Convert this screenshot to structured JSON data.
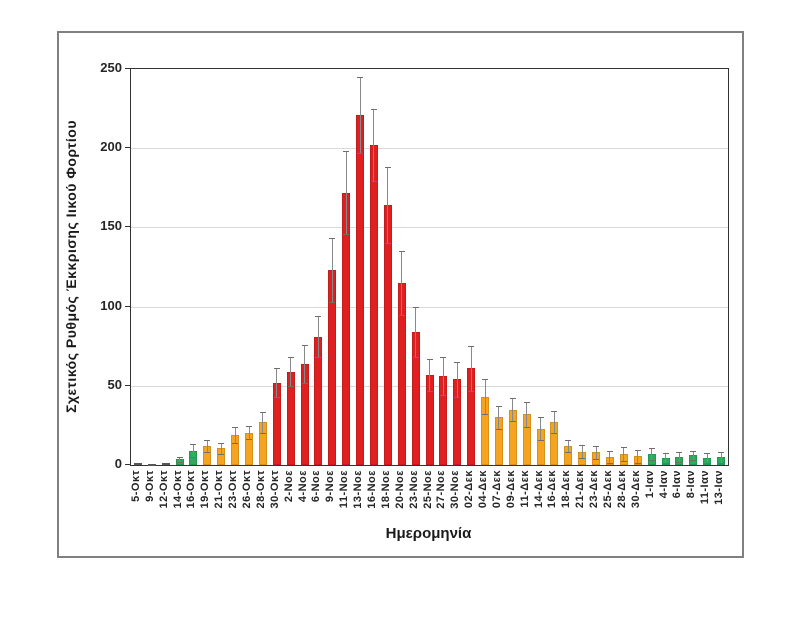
{
  "figure": {
    "background": "#ffffff",
    "frame_border_color": "#808080"
  },
  "chart_data": {
    "type": "bar",
    "title": "",
    "xlabel": "Ημερομηνία",
    "ylabel": "Σχετικός Ρυθμός Έκκρισης Ιικού Φορτίου",
    "ylim": [
      0,
      250
    ],
    "yticks": [
      0,
      50,
      100,
      150,
      200,
      250
    ],
    "grid": true,
    "legend": false,
    "error_bars": "symmetric",
    "categories": [
      "5-Οκτ",
      "9-Οκτ",
      "12-Οκτ",
      "14-Οκτ",
      "16-Οκτ",
      "19-Οκτ",
      "21-Οκτ",
      "23-Οκτ",
      "26-Οκτ",
      "28-Οκτ",
      "30-Οκτ",
      "2-Νοε",
      "4-Νοε",
      "6-Νοε",
      "9-Νοε",
      "11-Νοε",
      "13-Νοε",
      "16-Νοε",
      "18-Νοε",
      "20-Νοε",
      "23-Νοε",
      "25-Νοε",
      "27-Νοε",
      "30-Νοε",
      "02-Δεκ",
      "04-Δεκ",
      "07-Δεκ",
      "09-Δεκ",
      "11-Δεκ",
      "14-Δεκ",
      "16-Δεκ",
      "18-Δεκ",
      "21-Δεκ",
      "23-Δεκ",
      "25-Δεκ",
      "28-Δεκ",
      "30-Δεκ",
      "1-Ιαν",
      "4-Ιαν",
      "6-Ιαν",
      "8-Ιαν",
      "11-Ιαν",
      "13-Ιαν"
    ],
    "values": [
      1,
      0.5,
      1.5,
      3.5,
      9,
      12,
      10.5,
      19,
      20.5,
      27,
      52,
      59,
      64,
      81,
      123,
      172,
      221,
      202,
      164,
      115,
      84,
      57,
      56,
      54,
      61,
      43,
      30,
      35,
      32,
      23,
      27,
      12,
      8.5,
      8,
      5,
      7,
      5.5,
      7,
      4.5,
      5,
      6,
      4.5,
      5
    ],
    "error_plus": [
      0,
      0,
      0,
      1.5,
      4,
      4,
      3.5,
      5,
      4,
      6.5,
      9,
      9,
      12,
      13,
      20,
      26,
      24,
      23,
      24,
      20,
      16,
      10,
      12,
      11,
      14,
      11,
      7,
      7,
      8,
      7,
      7,
      4,
      4,
      4,
      4,
      4.5,
      4,
      4,
      3,
      3,
      3,
      3,
      3.5
    ],
    "bar_colors": [
      "gray",
      "gray",
      "gray",
      "green",
      "green",
      "orange",
      "orange",
      "orange",
      "orange",
      "orange",
      "red",
      "red",
      "red",
      "red",
      "red",
      "red",
      "red",
      "red",
      "red",
      "red",
      "red",
      "red",
      "red",
      "red",
      "red",
      "orange",
      "orange",
      "orange",
      "orange",
      "orange",
      "orange",
      "orange",
      "orange",
      "orange",
      "orange",
      "orange",
      "orange",
      "green",
      "green",
      "green",
      "green",
      "green",
      "green"
    ],
    "colors": {
      "gray": "#636363",
      "green": "#2bac5c",
      "orange": "#f5a41f",
      "red": "#e02020",
      "error_bar": "#898989",
      "gridline": "#d9d9d9",
      "axis": "#333333"
    }
  }
}
